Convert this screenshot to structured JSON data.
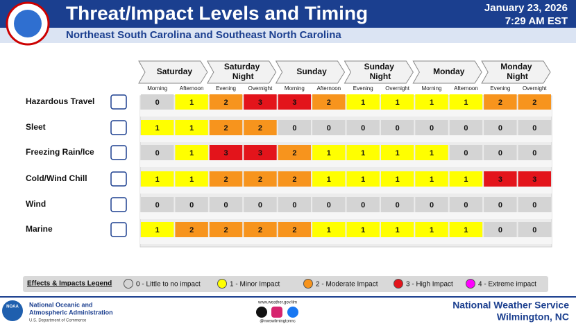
{
  "header": {
    "title": "Threat/Impact Levels and Timing",
    "subtitle": "Northeast South Carolina and Southeast North Carolina",
    "date": "January 23, 2026",
    "time": "7:29 AM EST"
  },
  "days": [
    "Saturday",
    "Saturday Night",
    "Sunday",
    "Sunday Night",
    "Monday",
    "Monday Night"
  ],
  "periods": [
    "Morning",
    "Afternoon",
    "Evening",
    "Overnight",
    "Morning",
    "Afternoon",
    "Evening",
    "Overnight",
    "Morning",
    "Afternoon",
    "Evening",
    "Overnight"
  ],
  "rows": [
    {
      "label": "Hazardous Travel",
      "values": [
        0,
        1,
        2,
        3,
        3,
        2,
        1,
        1,
        1,
        1,
        2,
        2
      ]
    },
    {
      "label": "Sleet",
      "values": [
        1,
        1,
        2,
        2,
        0,
        0,
        0,
        0,
        0,
        0,
        0,
        0
      ]
    },
    {
      "label": "Freezing Rain/Ice",
      "values": [
        0,
        1,
        3,
        3,
        2,
        1,
        1,
        1,
        1,
        0,
        0,
        0
      ]
    },
    {
      "label": "Cold/Wind Chill",
      "values": [
        1,
        1,
        2,
        2,
        2,
        1,
        1,
        1,
        1,
        1,
        3,
        3
      ]
    },
    {
      "label": "Wind",
      "values": [
        0,
        0,
        0,
        0,
        0,
        0,
        0,
        0,
        0,
        0,
        0,
        0
      ]
    },
    {
      "label": "Marine",
      "values": [
        1,
        2,
        2,
        2,
        2,
        1,
        1,
        1,
        1,
        1,
        0,
        0
      ]
    }
  ],
  "legend": {
    "title": "Effects & Impacts Legend",
    "items": [
      {
        "label": "0 - Little to no impact",
        "color": "#d4d4d4"
      },
      {
        "label": "1  -  Minor Impact",
        "color": "#ffff00"
      },
      {
        "label": "2 - Moderate Impact",
        "color": "#f7941d"
      },
      {
        "label": "3 - High Impact",
        "color": "#e3141b"
      },
      {
        "label": "4 - Extreme impact",
        "color": "#ff00ff"
      }
    ]
  },
  "footer": {
    "noaa_logo": "NOAA",
    "agency_line1": "National Oceanic and",
    "agency_line2": "Atmospheric Administration",
    "department": "U.S. Department of Commerce",
    "website": "www.weather.gov/ilm",
    "handle": "@nwswilmingtonnc",
    "office": "National Weather Service",
    "location": "Wilmington, NC"
  }
}
